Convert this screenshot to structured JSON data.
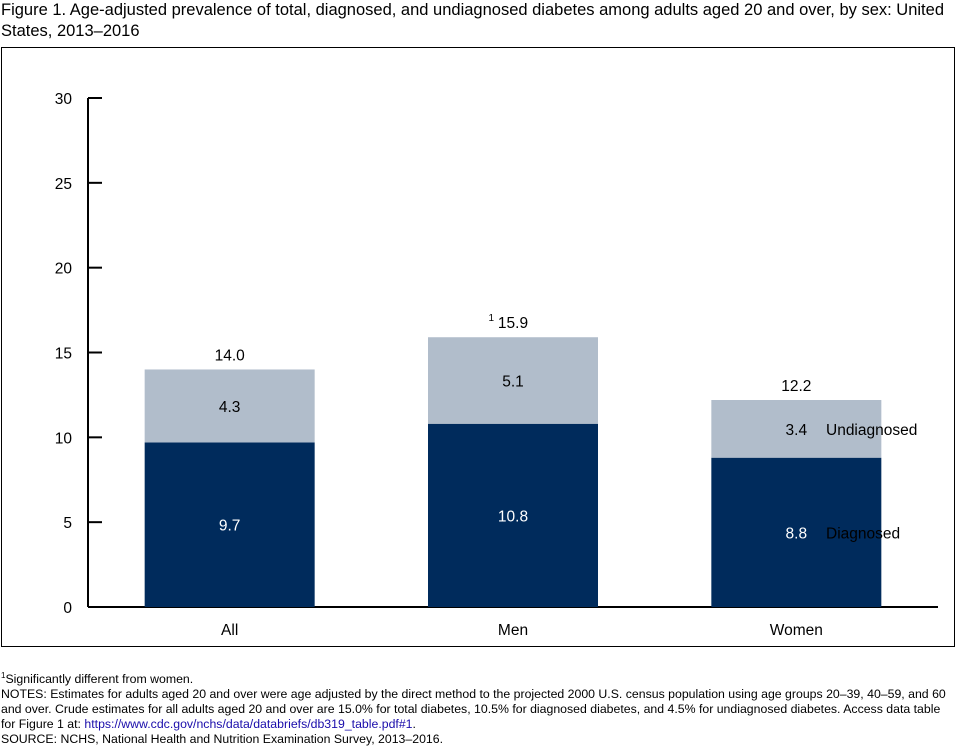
{
  "title": "Figure 1. Age-adjusted prevalence of total, diagnosed, and undiagnosed diabetes among adults aged 20 and over, by sex: United States, 2013–2016",
  "colors": {
    "diagnosed": "#002b5c",
    "undiagnosed": "#b1bdcb",
    "axis": "#000000"
  },
  "chart_data": {
    "type": "bar",
    "stacked": true,
    "categories": [
      "All",
      "Men",
      "Women"
    ],
    "series": [
      {
        "name": "Diagnosed",
        "values": [
          9.7,
          10.8,
          8.8
        ]
      },
      {
        "name": "Undiagnosed",
        "values": [
          4.3,
          5.1,
          3.4
        ]
      }
    ],
    "segment_labels": [
      [
        "9.7",
        "10.8",
        "8.8"
      ],
      [
        "4.3",
        "5.1",
        "3.4"
      ]
    ],
    "totals": [
      "14.0",
      "15.9",
      "12.2"
    ],
    "total_markers": [
      "",
      "1",
      ""
    ],
    "ylim": [
      0,
      30
    ],
    "yticks": [
      0,
      5,
      10,
      15,
      20,
      25,
      30
    ],
    "xlabel": "",
    "ylabel": "",
    "grid": false,
    "legend": "inline-right"
  },
  "notes": {
    "footnote_marker": "1",
    "footnote_text": "Significantly different from women.",
    "notes_text": "NOTES: Estimates for adults aged 20 and over were age adjusted by the direct method to the projected 2000 U.S. census population using age groups 20–39, 40–59, and 60 and over. Crude estimates for all adults aged 20 and over are 15.0% for total diabetes, 10.5% for diagnosed diabetes, and 4.5% for undiagnosed diabetes. Access data table for Figure 1 at: ",
    "link_text": "https://www.cdc.gov/nchs/data/databriefs/db319_table.pdf#1",
    "notes_end": ".",
    "source": "SOURCE: NCHS, National Health and Nutrition Examination Survey, 2013–2016."
  }
}
